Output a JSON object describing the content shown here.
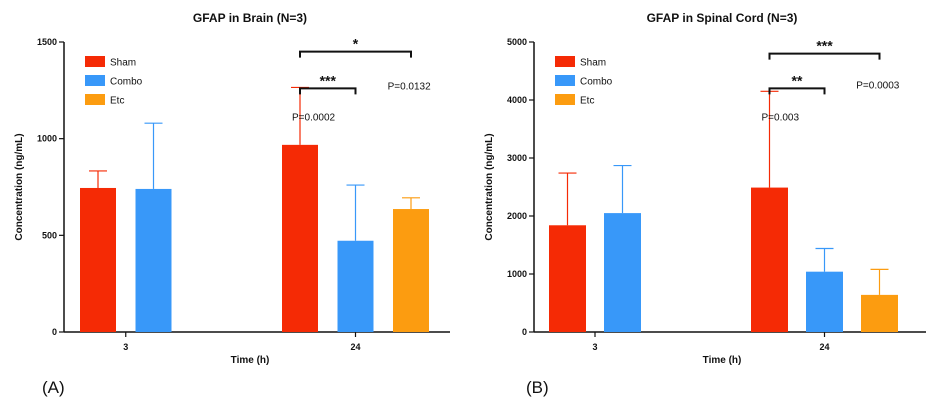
{
  "colors": {
    "sham": "#f52a05",
    "combo": "#3898f9",
    "etc": "#fc9c10",
    "axis": "#111111"
  },
  "chart_data": [
    {
      "type": "bar",
      "panel_label": "(A)",
      "title": "GFAP in Brain (N=3)",
      "xlabel": "Time (h)",
      "ylabel": "Concentration (ng/mL)",
      "ylim": [
        0,
        1500
      ],
      "yticks": [
        0,
        500,
        1000,
        1500
      ],
      "categories": [
        "3",
        "24"
      ],
      "legend_position": "top-left",
      "series": [
        {
          "name": "Sham",
          "key": "sham",
          "values": [
            745,
            968
          ],
          "errors": [
            88,
            297
          ]
        },
        {
          "name": "Combo",
          "key": "combo",
          "values": [
            740,
            472
          ],
          "errors": [
            340,
            288
          ]
        },
        {
          "name": "Etc",
          "key": "etc",
          "values": [
            null,
            636
          ],
          "errors": [
            null,
            58
          ]
        }
      ],
      "annotations": [
        {
          "stars": "***",
          "from_series": 0,
          "to_series": 1,
          "category": 1,
          "y": 1260,
          "p": "P=0.0002",
          "p_series": 0,
          "p_y": 1110
        },
        {
          "stars": "*",
          "from_series": 0,
          "to_series": 2,
          "category": 1,
          "y": 1450,
          "p": "P=0.0132",
          "p_series": 1.65,
          "p_y": 1270
        }
      ]
    },
    {
      "type": "bar",
      "panel_label": "(B)",
      "title": "GFAP in Spinal Cord (N=3)",
      "xlabel": "Time (h)",
      "ylabel": "Concentration (ng/mL)",
      "ylim": [
        0,
        5000
      ],
      "yticks": [
        0,
        1000,
        2000,
        3000,
        4000,
        5000
      ],
      "categories": [
        "3",
        "24"
      ],
      "legend_position": "top-left",
      "series": [
        {
          "name": "Sham",
          "key": "sham",
          "values": [
            1840,
            2490
          ],
          "errors": [
            900,
            1660
          ]
        },
        {
          "name": "Combo",
          "key": "combo",
          "values": [
            2050,
            1040
          ],
          "errors": [
            820,
            400
          ]
        },
        {
          "name": "Etc",
          "key": "etc",
          "values": [
            null,
            640
          ],
          "errors": [
            null,
            440
          ]
        }
      ],
      "annotations": [
        {
          "stars": "**",
          "from_series": 0,
          "to_series": 1,
          "category": 1,
          "y": 4200,
          "p": "P=0.003",
          "p_series": 0,
          "p_y": 3700
        },
        {
          "stars": "***",
          "from_series": 0,
          "to_series": 2,
          "category": 1,
          "y": 4800,
          "p": "P=0.0003",
          "p_series": 1.65,
          "p_y": 4250
        }
      ]
    }
  ]
}
